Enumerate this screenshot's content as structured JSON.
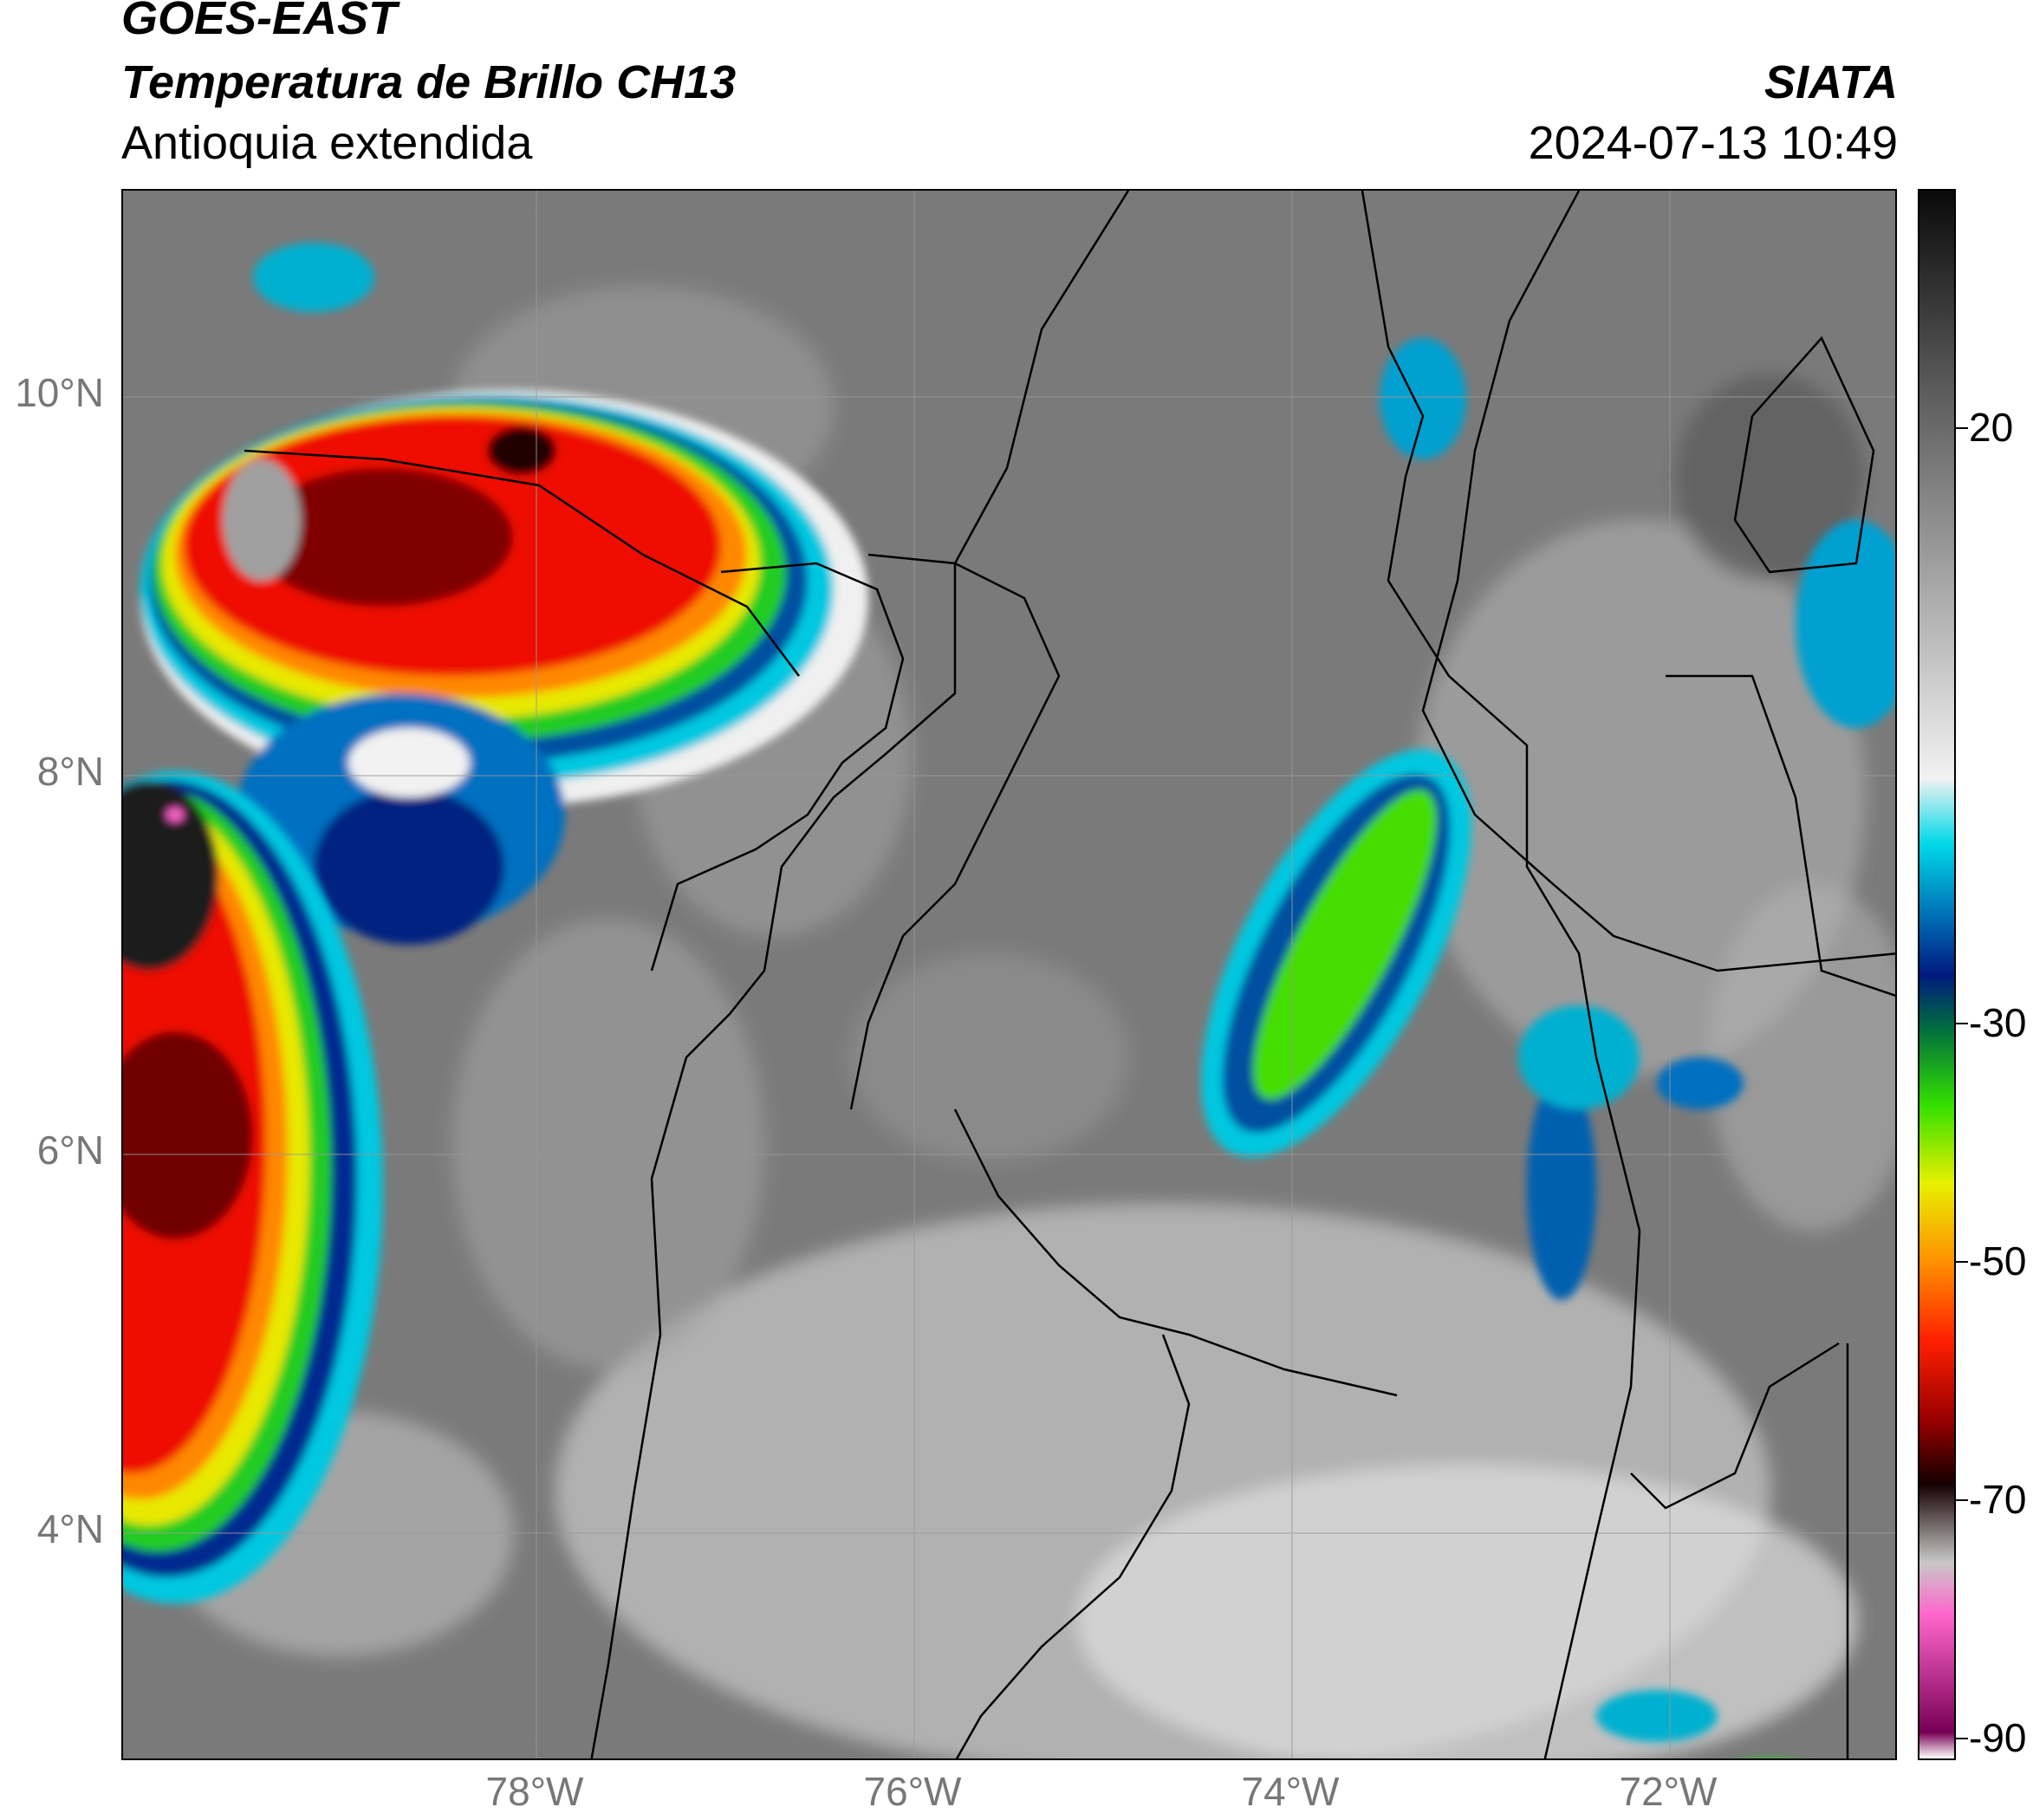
{
  "header": {
    "satellite": "GOES-EAST",
    "product": "Temperatura de Brillo CH13",
    "region": "Antioquia extendida",
    "agency": "SIATA",
    "datetime": "2024-07-13 10:49"
  },
  "map": {
    "lat_labels": [
      "10°N",
      "8°N",
      "6°N",
      "4°N"
    ],
    "lon_labels": [
      "78°W",
      "76°W",
      "74°W",
      "72°W"
    ],
    "lon_range": [
      -80.2,
      -70.8
    ],
    "lat_range": [
      2.9,
      11.1
    ],
    "background": "#787878"
  },
  "colorbar": {
    "range": [
      -90,
      30
    ],
    "tick_labels": [
      "20",
      "-30",
      "-50",
      "-70",
      "-90"
    ],
    "tick_values": [
      20,
      -30,
      -50,
      -70,
      -90
    ],
    "stops": [
      {
        "value": 30,
        "color": "#0a0a0a"
      },
      {
        "value": 15,
        "color": "#5a5a5a"
      },
      {
        "value": -15,
        "color": "#f2f2f2"
      },
      {
        "value": -20,
        "color": "#00d8e8"
      },
      {
        "value": -26,
        "color": "#0066b0"
      },
      {
        "value": -30,
        "color": "#001a80"
      },
      {
        "value": -34,
        "color": "#006a40"
      },
      {
        "value": -40,
        "color": "#33e000"
      },
      {
        "value": -46,
        "color": "#e8f000"
      },
      {
        "value": -52,
        "color": "#ff9000"
      },
      {
        "value": -58,
        "color": "#ff2000"
      },
      {
        "value": -64,
        "color": "#9a0000"
      },
      {
        "value": -69,
        "color": "#150000"
      },
      {
        "value": -75,
        "color": "#c8c8c8"
      },
      {
        "value": -79,
        "color": "#ff66cc"
      },
      {
        "value": -88,
        "color": "#770055"
      },
      {
        "value": -90,
        "color": "#ffffff"
      }
    ]
  }
}
